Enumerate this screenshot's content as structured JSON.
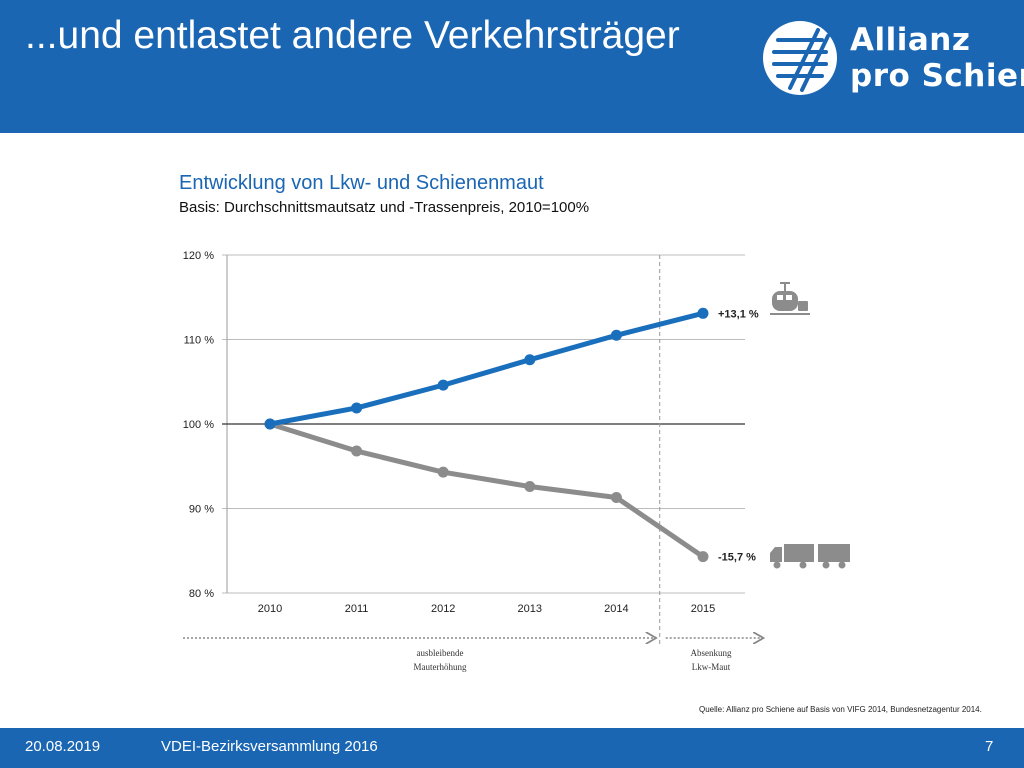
{
  "header": {
    "title": "...und entlastet andere Verkehrsträger",
    "logo_line1": "Allianz",
    "logo_line2": "pro Schiene",
    "logo_icon": "allianz-pro-schiene-logo-icon"
  },
  "chart_data": {
    "type": "line",
    "title": "Entwicklung von Lkw- und Schienenmaut",
    "subtitle": "Basis: Durchschnittsmautsatz und -Trassenpreis, 2010=100%",
    "categories": [
      "2010",
      "2011",
      "2012",
      "2013",
      "2014",
      "2015"
    ],
    "yticks": [
      "80 %",
      "90 %",
      "100 %",
      "110 %",
      "120 %"
    ],
    "ylim": [
      80,
      120
    ],
    "grid": true,
    "reference_line": 100,
    "series": [
      {
        "values": [
          100,
          101.9,
          104.6,
          107.6,
          110.5,
          113.1
        ],
        "color": "#1a6fbd",
        "end_label": "+13,1 %",
        "icon": "train-icon"
      },
      {
        "values": [
          100,
          96.8,
          94.3,
          92.6,
          91.3,
          84.3
        ],
        "color": "#8c8c8c",
        "end_label": "-15,7 %",
        "icon": "truck-icon"
      }
    ],
    "divider_between": [
      "2014",
      "2015"
    ],
    "annotations": [
      {
        "line1": "ausbleibende",
        "line2": "Mauterhöhung"
      },
      {
        "line1": "Absenkung",
        "line2": "Lkw-Maut"
      }
    ]
  },
  "source": "Quelle: Allianz pro Schiene auf Basis von VIFG 2014, Bundesnetzagentur 2014.",
  "footer": {
    "date": "20.08.2019",
    "event": "VDEI-Bezirksversammlung 2016",
    "page": "7"
  },
  "colors": {
    "brand_blue": "#1a66b3",
    "rail_line": "#1a6fbd",
    "road_line": "#8c8c8c"
  }
}
